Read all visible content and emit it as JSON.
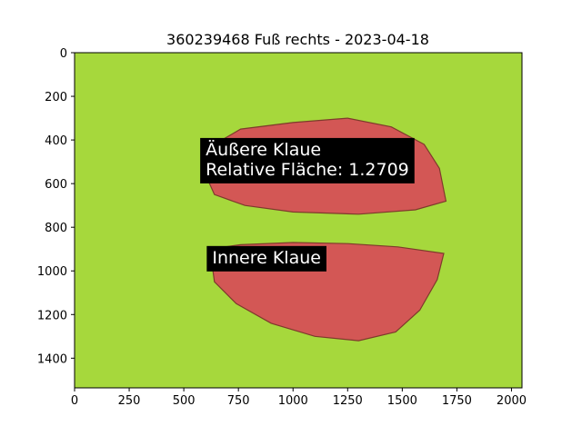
{
  "chart_data": {
    "type": "image",
    "title": "360239468 Fuß rechts - 2023-04-18",
    "xlabel": "",
    "ylabel": "",
    "xlim": [
      0,
      2048
    ],
    "ylim": [
      1536,
      0
    ],
    "x_ticks": [
      0,
      250,
      500,
      750,
      1000,
      1250,
      1500,
      1750,
      2000
    ],
    "y_ticks": [
      0,
      200,
      400,
      600,
      800,
      1000,
      1200,
      1400
    ],
    "grid": false,
    "annotations": [
      {
        "lines": [
          "Äußere Klaue",
          "Relative Fläche: 1.2709"
        ],
        "x": 600,
        "y": 470
      },
      {
        "lines": [
          "Innere Klaue"
        ],
        "x": 630,
        "y": 965
      }
    ],
    "regions": [
      {
        "name": "Äußere Klaue",
        "outline": [
          [
            600,
            560
          ],
          [
            640,
            420
          ],
          [
            760,
            350
          ],
          [
            1000,
            320
          ],
          [
            1250,
            300
          ],
          [
            1450,
            340
          ],
          [
            1600,
            420
          ],
          [
            1670,
            530
          ],
          [
            1700,
            680
          ],
          [
            1560,
            720
          ],
          [
            1300,
            740
          ],
          [
            1000,
            730
          ],
          [
            780,
            700
          ],
          [
            640,
            650
          ]
        ]
      },
      {
        "name": "Innere Klaue",
        "outline": [
          [
            620,
            900
          ],
          [
            760,
            880
          ],
          [
            1000,
            870
          ],
          [
            1250,
            875
          ],
          [
            1480,
            890
          ],
          [
            1690,
            920
          ],
          [
            1660,
            1040
          ],
          [
            1580,
            1180
          ],
          [
            1470,
            1280
          ],
          [
            1300,
            1320
          ],
          [
            1100,
            1300
          ],
          [
            900,
            1240
          ],
          [
            740,
            1150
          ],
          [
            640,
            1050
          ]
        ]
      }
    ],
    "colors": {
      "background": "#a6d83c",
      "region_fill": "#d84a58",
      "label_box": "#000000",
      "label_text": "#ffffff"
    }
  }
}
